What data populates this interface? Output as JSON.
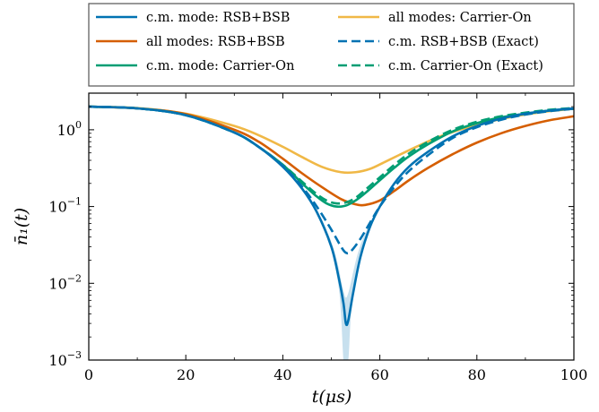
{
  "chart_data": {
    "type": "line",
    "xlabel": "t(μs)",
    "ylabel": "n̄₁(t)",
    "xlim": [
      0,
      100
    ],
    "ylim": [
      0.001,
      3
    ],
    "yscale": "log",
    "grid": false,
    "legend_placement": "top (above plot), two columns",
    "x_ticks": [
      {
        "value": 0,
        "label": "0"
      },
      {
        "value": 20,
        "label": "20"
      },
      {
        "value": 40,
        "label": "40"
      },
      {
        "value": 60,
        "label": "60"
      },
      {
        "value": 80,
        "label": "80"
      },
      {
        "value": 100,
        "label": "100"
      }
    ],
    "y_ticks": [
      {
        "value": 0.001,
        "base": "10",
        "exp": "−3"
      },
      {
        "value": 0.01,
        "base": "10",
        "exp": "−2"
      },
      {
        "value": 0.1,
        "base": "10",
        "exp": "−1"
      },
      {
        "value": 1,
        "base": "10",
        "exp": "0"
      }
    ],
    "series": [
      {
        "name": "c.m. mode: RSB+BSB",
        "color": "#0072b2",
        "dash": "solid",
        "x": [
          0,
          10,
          20,
          30,
          35,
          40,
          44,
          47,
          50,
          51.5,
          52.5,
          53,
          53.5,
          54.5,
          56,
          58,
          60,
          63,
          66,
          70,
          75,
          80,
          85,
          90,
          95,
          100
        ],
        "y": [
          2.0,
          1.9,
          1.55,
          0.92,
          0.6,
          0.33,
          0.17,
          0.085,
          0.03,
          0.012,
          0.0055,
          0.003,
          0.0033,
          0.0075,
          0.022,
          0.055,
          0.1,
          0.2,
          0.33,
          0.52,
          0.82,
          1.12,
          1.4,
          1.62,
          1.78,
          1.9
        ]
      },
      {
        "name": "all modes: RSB+BSB",
        "color": "#d55e00",
        "dash": "solid",
        "x": [
          0,
          10,
          20,
          30,
          35,
          40,
          44,
          48,
          52,
          55,
          57,
          60,
          63,
          66,
          70,
          75,
          80,
          85,
          90,
          95,
          100
        ],
        "y": [
          2.0,
          1.9,
          1.6,
          1.0,
          0.7,
          0.42,
          0.27,
          0.18,
          0.125,
          0.107,
          0.105,
          0.12,
          0.16,
          0.22,
          0.32,
          0.48,
          0.68,
          0.9,
          1.12,
          1.33,
          1.5
        ]
      },
      {
        "name": "c.m. mode: Carrier-On",
        "color": "#009e73",
        "dash": "solid",
        "x": [
          0,
          10,
          20,
          30,
          35,
          40,
          44,
          47,
          49,
          51,
          53,
          55,
          57,
          60,
          63,
          66,
          70,
          75,
          80,
          85,
          90,
          95,
          100
        ],
        "y": [
          2.0,
          1.9,
          1.55,
          0.92,
          0.6,
          0.35,
          0.2,
          0.135,
          0.11,
          0.1,
          0.103,
          0.12,
          0.15,
          0.22,
          0.32,
          0.45,
          0.65,
          0.95,
          1.22,
          1.45,
          1.62,
          1.78,
          1.88
        ]
      },
      {
        "name": "all modes: Carrier-On",
        "color": "#f0b846",
        "dash": "solid",
        "x": [
          0,
          10,
          20,
          30,
          35,
          40,
          44,
          48,
          52,
          55,
          58,
          61,
          64,
          68,
          72,
          76,
          80,
          85,
          90,
          95,
          100
        ],
        "y": [
          2.0,
          1.92,
          1.62,
          1.12,
          0.85,
          0.6,
          0.44,
          0.33,
          0.28,
          0.28,
          0.31,
          0.38,
          0.47,
          0.62,
          0.8,
          0.98,
          1.15,
          1.38,
          1.58,
          1.75,
          1.88
        ]
      },
      {
        "name": "c.m. RSB+BSB (Exact)",
        "color": "#0072b2",
        "dash": "dashed",
        "x": [
          0,
          10,
          20,
          30,
          35,
          40,
          44,
          47,
          50,
          52,
          53,
          54,
          56,
          58,
          60,
          63,
          66,
          70,
          75,
          80,
          85,
          90,
          95,
          100
        ],
        "y": [
          2.0,
          1.9,
          1.55,
          0.92,
          0.6,
          0.34,
          0.18,
          0.1,
          0.05,
          0.03,
          0.025,
          0.026,
          0.038,
          0.062,
          0.1,
          0.18,
          0.29,
          0.47,
          0.78,
          1.08,
          1.35,
          1.58,
          1.75,
          1.88
        ]
      },
      {
        "name": "c.m. Carrier-On (Exact)",
        "color": "#009e73",
        "dash": "dashed",
        "x": [
          0,
          10,
          20,
          30,
          35,
          40,
          44,
          47,
          49,
          51,
          53,
          55,
          57,
          60,
          63,
          66,
          70,
          75,
          80,
          85,
          90,
          95,
          100
        ],
        "y": [
          2.0,
          1.9,
          1.55,
          0.92,
          0.6,
          0.35,
          0.21,
          0.145,
          0.12,
          0.11,
          0.113,
          0.13,
          0.165,
          0.24,
          0.35,
          0.49,
          0.7,
          1.0,
          1.27,
          1.5,
          1.67,
          1.82,
          1.92
        ]
      }
    ],
    "uncertainty_band": {
      "series": "c.m. mode: RSB+BSB",
      "color": "#0072b2",
      "x": [
        44,
        47,
        49,
        50.5,
        51.5,
        52,
        52.5,
        53,
        53.5,
        54,
        54.5,
        55.5,
        57,
        59
      ],
      "upper": [
        0.175,
        0.09,
        0.05,
        0.028,
        0.016,
        0.011,
        0.008,
        0.0065,
        0.0075,
        0.01,
        0.014,
        0.025,
        0.045,
        0.08
      ],
      "lower": [
        0.165,
        0.08,
        0.042,
        0.02,
        0.009,
        0.004,
        0.001,
        0.001,
        0.001,
        0.0035,
        0.0065,
        0.017,
        0.037,
        0.07
      ]
    }
  }
}
